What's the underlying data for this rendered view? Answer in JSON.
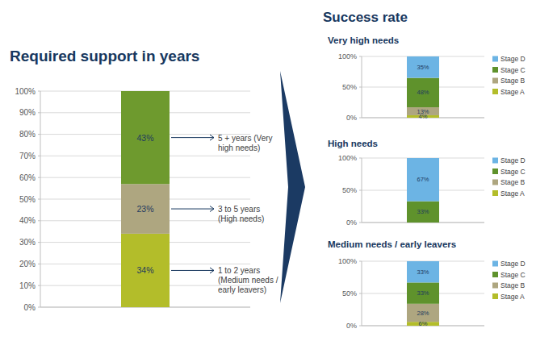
{
  "group_title": "Success rate",
  "chart_data": [
    {
      "type": "bar",
      "stacked": true,
      "title": "Required support in years",
      "categories": [
        null
      ],
      "ylim": [
        0,
        100
      ],
      "yticks": [
        {
          "value": 0,
          "label": "0%"
        },
        {
          "value": 10,
          "label": "10%"
        },
        {
          "value": 20,
          "label": "20%"
        },
        {
          "value": 30,
          "label": "30%"
        },
        {
          "value": 40,
          "label": "40%"
        },
        {
          "value": 50,
          "label": "50%"
        },
        {
          "value": 60,
          "label": "60%"
        },
        {
          "value": 70,
          "label": "70%"
        },
        {
          "value": 80,
          "label": "80%"
        },
        {
          "value": 90,
          "label": "90%"
        },
        {
          "value": 100,
          "label": "100%"
        }
      ],
      "grid": true,
      "data_labels": true,
      "series": [
        {
          "name": "1 to 2 years (Medium needs / early leavers)",
          "color": "#b3bd2a",
          "values": [
            34
          ],
          "value_labels": [
            "34%"
          ]
        },
        {
          "name": "3 to 5 years (High needs)",
          "color": "#aea680",
          "values": [
            23
          ],
          "value_labels": [
            "23%"
          ]
        },
        {
          "name": "5 + years (Very high needs)",
          "color": "#6e9a2e",
          "values": [
            43
          ],
          "value_labels": [
            "43%"
          ]
        }
      ]
    },
    {
      "type": "bar",
      "stacked": true,
      "title": "Very high needs",
      "categories": [
        null
      ],
      "ylim": [
        0,
        100
      ],
      "yticks": [
        {
          "value": 0,
          "label": "0%"
        },
        {
          "value": 50,
          "label": "50%"
        },
        {
          "value": 100,
          "label": "100%"
        }
      ],
      "grid": true,
      "data_labels": true,
      "legend": "right",
      "series": [
        {
          "name": "Stage A",
          "color": "#b3bd2a",
          "values": [
            4
          ],
          "value_labels": [
            "4%"
          ]
        },
        {
          "name": "Stage B",
          "color": "#aea680",
          "values": [
            13
          ],
          "value_labels": [
            "13%"
          ]
        },
        {
          "name": "Stage C",
          "color": "#5f922c",
          "values": [
            48
          ],
          "value_labels": [
            "48%"
          ]
        },
        {
          "name": "Stage D",
          "color": "#6cb4e4",
          "values": [
            35
          ],
          "value_labels": [
            "35%"
          ]
        }
      ]
    },
    {
      "type": "bar",
      "stacked": true,
      "title": "High needs",
      "categories": [
        null
      ],
      "ylim": [
        0,
        100
      ],
      "yticks": [
        {
          "value": 0,
          "label": "0%"
        },
        {
          "value": 50,
          "label": "50%"
        },
        {
          "value": 100,
          "label": "100%"
        }
      ],
      "grid": true,
      "data_labels": true,
      "legend": "right",
      "series": [
        {
          "name": "Stage A",
          "color": "#b3bd2a",
          "values": [
            0
          ],
          "value_labels": [
            null
          ]
        },
        {
          "name": "Stage B",
          "color": "#aea680",
          "values": [
            0
          ],
          "value_labels": [
            null
          ]
        },
        {
          "name": "Stage C",
          "color": "#5f922c",
          "values": [
            33
          ],
          "value_labels": [
            "33%"
          ]
        },
        {
          "name": "Stage D",
          "color": "#6cb4e4",
          "values": [
            67
          ],
          "value_labels": [
            "67%"
          ]
        }
      ]
    },
    {
      "type": "bar",
      "stacked": true,
      "title": "Medium needs / early leavers",
      "categories": [
        null
      ],
      "ylim": [
        0,
        100
      ],
      "yticks": [
        {
          "value": 0,
          "label": "0%"
        },
        {
          "value": 50,
          "label": "50%"
        },
        {
          "value": 100,
          "label": "100%"
        }
      ],
      "grid": true,
      "data_labels": true,
      "legend": "right",
      "series": [
        {
          "name": "Stage A",
          "color": "#b3bd2a",
          "values": [
            6
          ],
          "value_labels": [
            "6%"
          ]
        },
        {
          "name": "Stage B",
          "color": "#aea680",
          "values": [
            28
          ],
          "value_labels": [
            "28%"
          ]
        },
        {
          "name": "Stage C",
          "color": "#5f922c",
          "values": [
            33
          ],
          "value_labels": [
            "33%"
          ]
        },
        {
          "name": "Stage D",
          "color": "#6cb4e4",
          "values": [
            33
          ],
          "value_labels": [
            "33%"
          ]
        }
      ]
    }
  ]
}
